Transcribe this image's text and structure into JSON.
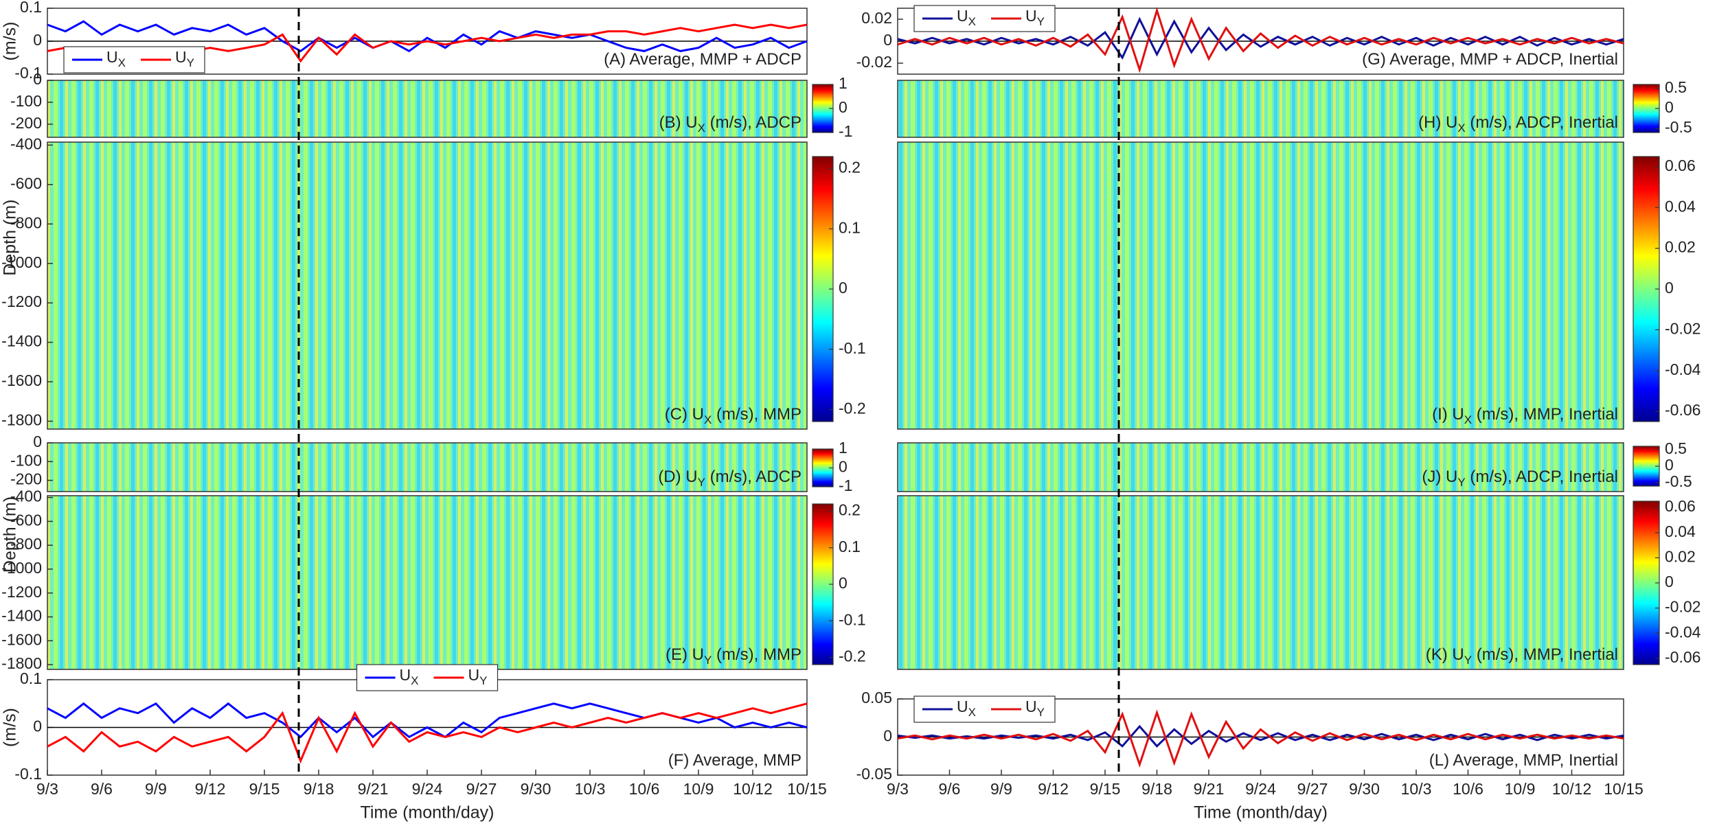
{
  "chart_data": [
    {
      "type": "line",
      "title": [
        "(A) Average, MMP + ADCP"
      ],
      "ylabel": "(m/s)",
      "legend": "lower left",
      "x": [
        "9/3",
        "9/4",
        "9/5",
        "9/6",
        "9/7",
        "9/8",
        "9/9",
        "9/10",
        "9/11",
        "9/12",
        "9/13",
        "9/14",
        "9/15",
        "9/16",
        "9/17",
        "9/18",
        "9/19",
        "9/20",
        "9/21",
        "9/22",
        "9/23",
        "9/24",
        "9/25",
        "9/26",
        "9/27",
        "9/28",
        "9/29",
        "9/30",
        "10/1",
        "10/2",
        "10/3",
        "10/4",
        "10/5",
        "10/6",
        "10/7",
        "10/8",
        "10/9",
        "10/10",
        "10/11",
        "10/12",
        "10/13",
        "10/14",
        "10/15"
      ],
      "xlim": [
        "9/3",
        "10/15"
      ],
      "ylim": [
        -0.1,
        0.1
      ],
      "yticks": [
        -0.1,
        0,
        0.1
      ],
      "series": [
        {
          "name": [
            "U",
            "X"
          ],
          "color": "#0000ff",
          "values": [
            0.05,
            0.03,
            0.06,
            0.02,
            0.05,
            0.03,
            0.05,
            0.02,
            0.04,
            0.03,
            0.05,
            0.02,
            0.04,
            0.0,
            -0.03,
            0.01,
            -0.02,
            0.01,
            -0.02,
            0.0,
            -0.03,
            0.01,
            -0.02,
            0.02,
            -0.01,
            0.03,
            0.01,
            0.03,
            0.02,
            0.01,
            0.02,
            0.0,
            -0.02,
            -0.03,
            -0.01,
            -0.03,
            -0.02,
            0.01,
            -0.02,
            -0.01,
            0.01,
            -0.02,
            0.0
          ]
        },
        {
          "name": [
            "U",
            "Y"
          ],
          "color": "#ff0000",
          "values": [
            -0.03,
            -0.02,
            -0.04,
            -0.02,
            -0.03,
            -0.03,
            -0.02,
            -0.04,
            -0.03,
            -0.02,
            -0.03,
            -0.02,
            -0.01,
            0.02,
            -0.06,
            0.01,
            -0.04,
            0.02,
            -0.02,
            0.0,
            -0.01,
            0.0,
            -0.01,
            0.0,
            0.01,
            0.0,
            0.01,
            0.02,
            0.01,
            0.02,
            0.02,
            0.03,
            0.03,
            0.02,
            0.03,
            0.04,
            0.03,
            0.04,
            0.05,
            0.04,
            0.05,
            0.04,
            0.05
          ]
        }
      ]
    },
    {
      "type": "heatmap",
      "title": [
        "(B) U",
        "X",
        " (m/s), ADCP"
      ],
      "ylim": [
        -260,
        0
      ],
      "yticks": [
        -200,
        -100,
        0
      ],
      "colorbar": {
        "lim": [
          -1,
          1
        ],
        "ticks": [
          -1,
          0,
          1
        ]
      }
    },
    {
      "type": "heatmap",
      "title": [
        "(C) U",
        "X",
        " (m/s), MMP"
      ],
      "ylabel": "Depth (m)",
      "ylim": [
        -1840,
        -385
      ],
      "yticks": [
        -1800,
        -1600,
        -1400,
        -1200,
        -1000,
        -800,
        -600,
        -400
      ],
      "colorbar": {
        "lim": [
          -0.22,
          0.22
        ],
        "ticks": [
          -0.2,
          -0.1,
          0,
          0.1,
          0.2
        ]
      }
    },
    {
      "type": "heatmap",
      "title": [
        "(D) U",
        "Y",
        " (m/s), ADCP"
      ],
      "ylim": [
        -260,
        0
      ],
      "yticks": [
        -200,
        -100,
        0
      ],
      "colorbar": {
        "lim": [
          -1,
          1
        ],
        "ticks": [
          -1,
          0,
          1
        ]
      }
    },
    {
      "type": "heatmap",
      "title": [
        "(E) U",
        "Y",
        " (m/s), MMP"
      ],
      "ylabel": "Depth (m)",
      "ylim": [
        -1840,
        -385
      ],
      "yticks": [
        -1800,
        -1600,
        -1400,
        -1200,
        -1000,
        -800,
        -600,
        -400
      ],
      "colorbar": {
        "lim": [
          -0.22,
          0.22
        ],
        "ticks": [
          -0.2,
          -0.1,
          0,
          0.1,
          0.2
        ]
      }
    },
    {
      "type": "line",
      "title": [
        "(F) Average, MMP"
      ],
      "ylabel": "(m/s)",
      "xlabel": "Time (month/day)",
      "legend": "upper center",
      "x": [
        "9/3",
        "9/4",
        "9/5",
        "9/6",
        "9/7",
        "9/8",
        "9/9",
        "9/10",
        "9/11",
        "9/12",
        "9/13",
        "9/14",
        "9/15",
        "9/16",
        "9/17",
        "9/18",
        "9/19",
        "9/20",
        "9/21",
        "9/22",
        "9/23",
        "9/24",
        "9/25",
        "9/26",
        "9/27",
        "9/28",
        "9/29",
        "9/30",
        "10/1",
        "10/2",
        "10/3",
        "10/4",
        "10/5",
        "10/6",
        "10/7",
        "10/8",
        "10/9",
        "10/10",
        "10/11",
        "10/12",
        "10/13",
        "10/14",
        "10/15"
      ],
      "xlim": [
        "9/3",
        "10/15"
      ],
      "xticks": [
        "9/3",
        "9/6",
        "9/9",
        "9/12",
        "9/15",
        "9/18",
        "9/21",
        "9/24",
        "9/27",
        "9/30",
        "10/3",
        "10/6",
        "10/9",
        "10/12",
        "10/15"
      ],
      "ylim": [
        -0.1,
        0.1
      ],
      "yticks": [
        -0.1,
        0,
        0.1
      ],
      "series": [
        {
          "name": [
            "U",
            "X"
          ],
          "color": "#0000ff",
          "values": [
            0.04,
            0.02,
            0.05,
            0.02,
            0.04,
            0.03,
            0.05,
            0.01,
            0.04,
            0.02,
            0.05,
            0.02,
            0.03,
            0.01,
            -0.02,
            0.02,
            -0.01,
            0.02,
            -0.02,
            0.01,
            -0.02,
            0.0,
            -0.02,
            0.01,
            -0.01,
            0.02,
            0.03,
            0.04,
            0.05,
            0.04,
            0.05,
            0.04,
            0.03,
            0.02,
            0.03,
            0.02,
            0.01,
            0.02,
            0.0,
            0.01,
            0.0,
            0.01,
            0.0
          ]
        },
        {
          "name": [
            "U",
            "Y"
          ],
          "color": "#ff0000",
          "values": [
            -0.04,
            -0.02,
            -0.05,
            -0.01,
            -0.04,
            -0.03,
            -0.05,
            -0.02,
            -0.04,
            -0.03,
            -0.02,
            -0.05,
            -0.02,
            0.03,
            -0.07,
            0.02,
            -0.05,
            0.03,
            -0.04,
            0.01,
            -0.03,
            -0.01,
            -0.02,
            -0.01,
            -0.02,
            0.0,
            -0.01,
            0.0,
            0.01,
            0.0,
            0.01,
            0.02,
            0.01,
            0.02,
            0.03,
            0.02,
            0.03,
            0.02,
            0.03,
            0.04,
            0.03,
            0.04,
            0.05
          ]
        }
      ]
    },
    {
      "type": "line",
      "title": [
        "(G) Average, MMP + ADCP, Inertial"
      ],
      "legend": "upper left",
      "x": [
        "9/3",
        "9/4",
        "9/5",
        "9/6",
        "9/7",
        "9/8",
        "9/9",
        "9/10",
        "9/11",
        "9/12",
        "9/13",
        "9/14",
        "9/15",
        "9/16",
        "9/17",
        "9/18",
        "9/19",
        "9/20",
        "9/21",
        "9/22",
        "9/23",
        "9/24",
        "9/25",
        "9/26",
        "9/27",
        "9/28",
        "9/29",
        "9/30",
        "10/1",
        "10/2",
        "10/3",
        "10/4",
        "10/5",
        "10/6",
        "10/7",
        "10/8",
        "10/9",
        "10/10",
        "10/11",
        "10/12",
        "10/13",
        "10/14",
        "10/15"
      ],
      "xlim": [
        "9/3",
        "10/15"
      ],
      "ylim": [
        -0.03,
        0.03
      ],
      "yticks": [
        -0.02,
        0,
        0.02
      ],
      "series": [
        {
          "name": [
            "U",
            "X"
          ],
          "color": "#10109a",
          "values": [
            0.002,
            -0.002,
            0.003,
            -0.002,
            0.002,
            -0.003,
            0.003,
            -0.002,
            0.002,
            -0.003,
            0.004,
            -0.004,
            0.008,
            -0.015,
            0.02,
            -0.012,
            0.018,
            -0.01,
            0.012,
            -0.008,
            0.006,
            -0.005,
            0.004,
            -0.003,
            0.004,
            -0.004,
            0.003,
            -0.003,
            0.004,
            -0.003,
            0.003,
            -0.004,
            0.003,
            -0.003,
            0.004,
            -0.003,
            0.004,
            -0.004,
            0.003,
            -0.003,
            0.002,
            -0.003,
            0.002
          ]
        },
        {
          "name": [
            "U",
            "Y"
          ],
          "color": "#e01010",
          "values": [
            -0.003,
            0.002,
            -0.003,
            0.003,
            -0.002,
            0.003,
            -0.003,
            0.002,
            -0.004,
            0.003,
            -0.005,
            0.006,
            -0.012,
            0.022,
            -0.026,
            0.028,
            -0.022,
            0.02,
            -0.016,
            0.012,
            -0.009,
            0.007,
            -0.006,
            0.005,
            -0.004,
            0.004,
            -0.003,
            0.003,
            -0.003,
            0.002,
            -0.003,
            0.003,
            -0.002,
            0.003,
            -0.002,
            0.002,
            -0.003,
            0.002,
            -0.002,
            0.003,
            -0.002,
            0.002,
            -0.002
          ]
        }
      ]
    },
    {
      "type": "heatmap",
      "title": [
        "(H) U",
        "X",
        " (m/s), ADCP, Inertial"
      ],
      "ylim": [
        -260,
        0
      ],
      "colorbar": {
        "lim": [
          -0.6,
          0.6
        ],
        "ticks": [
          -0.5,
          0,
          0.5
        ]
      }
    },
    {
      "type": "heatmap",
      "title": [
        "(I) U",
        "X",
        " (m/s), MMP, Inertial"
      ],
      "ylim": [
        -1840,
        -385
      ],
      "colorbar": {
        "lim": [
          -0.065,
          0.065
        ],
        "ticks": [
          -0.06,
          -0.04,
          -0.02,
          0,
          0.02,
          0.04,
          0.06
        ]
      }
    },
    {
      "type": "heatmap",
      "title": [
        "(J) U",
        "Y",
        " (m/s), ADCP, Inertial"
      ],
      "ylim": [
        -260,
        0
      ],
      "colorbar": {
        "lim": [
          -0.6,
          0.6
        ],
        "ticks": [
          -0.5,
          0,
          0.5
        ]
      }
    },
    {
      "type": "heatmap",
      "title": [
        "(K) U",
        "Y",
        " (m/s), MMP, Inertial"
      ],
      "ylim": [
        -1840,
        -385
      ],
      "colorbar": {
        "lim": [
          -0.065,
          0.065
        ],
        "ticks": [
          -0.06,
          -0.04,
          -0.02,
          0,
          0.02,
          0.04,
          0.06
        ]
      }
    },
    {
      "type": "line",
      "title": [
        "(L) Average, MMP, Inertial"
      ],
      "xlabel": "Time (month/day)",
      "legend": "upper left",
      "x": [
        "9/3",
        "9/4",
        "9/5",
        "9/6",
        "9/7",
        "9/8",
        "9/9",
        "9/10",
        "9/11",
        "9/12",
        "9/13",
        "9/14",
        "9/15",
        "9/16",
        "9/17",
        "9/18",
        "9/19",
        "9/20",
        "9/21",
        "9/22",
        "9/23",
        "9/24",
        "9/25",
        "9/26",
        "9/27",
        "9/28",
        "9/29",
        "9/30",
        "10/1",
        "10/2",
        "10/3",
        "10/4",
        "10/5",
        "10/6",
        "10/7",
        "10/8",
        "10/9",
        "10/10",
        "10/11",
        "10/12",
        "10/13",
        "10/14",
        "10/15"
      ],
      "xlim": [
        "9/3",
        "10/15"
      ],
      "xticks": [
        "9/3",
        "9/6",
        "9/9",
        "9/12",
        "9/15",
        "9/18",
        "9/21",
        "9/24",
        "9/27",
        "9/30",
        "10/3",
        "10/6",
        "10/9",
        "10/12",
        "10/15"
      ],
      "ylim": [
        -0.05,
        0.05
      ],
      "yticks": [
        -0.05,
        0,
        0.05
      ],
      "series": [
        {
          "name": [
            "U",
            "X"
          ],
          "color": "#10109a",
          "values": [
            0.002,
            -0.001,
            0.002,
            -0.002,
            0.001,
            -0.002,
            0.002,
            -0.001,
            0.002,
            -0.002,
            0.003,
            -0.004,
            0.006,
            -0.012,
            0.014,
            -0.012,
            0.01,
            -0.009,
            0.008,
            -0.006,
            0.005,
            -0.004,
            0.005,
            -0.004,
            0.003,
            -0.004,
            0.003,
            -0.003,
            0.004,
            -0.003,
            0.003,
            -0.004,
            0.003,
            -0.003,
            0.004,
            -0.003,
            0.003,
            -0.004,
            0.003,
            -0.002,
            0.003,
            -0.002,
            0.002
          ]
        },
        {
          "name": [
            "U",
            "Y"
          ],
          "color": "#e01010",
          "values": [
            -0.002,
            0.002,
            -0.003,
            0.002,
            -0.002,
            0.003,
            -0.002,
            0.003,
            -0.003,
            0.004,
            -0.005,
            0.008,
            -0.02,
            0.03,
            -0.036,
            0.032,
            -0.034,
            0.03,
            -0.026,
            0.02,
            -0.015,
            0.01,
            -0.008,
            0.006,
            -0.005,
            0.005,
            -0.004,
            0.004,
            -0.003,
            0.003,
            -0.004,
            0.003,
            -0.003,
            0.004,
            -0.003,
            0.003,
            -0.002,
            0.003,
            -0.002,
            0.002,
            -0.002,
            0.002,
            -0.002
          ]
        }
      ]
    }
  ]
}
